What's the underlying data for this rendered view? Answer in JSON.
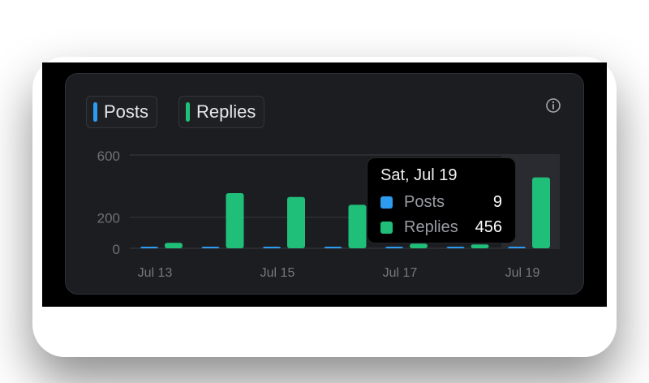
{
  "legend": {
    "posts_label": "Posts",
    "replies_label": "Replies",
    "posts_color": "#2d9cf0",
    "replies_color": "#1fbf7a"
  },
  "info_icon": "info-circle-icon",
  "tooltip": {
    "title": "Sat, Jul 19",
    "posts_label": "Posts",
    "posts_value": "9",
    "replies_label": "Replies",
    "replies_value": "456"
  },
  "chart_data": {
    "type": "bar",
    "categories": [
      "Jul 13",
      "Jul 14",
      "Jul 15",
      "Jul 16",
      "Jul 17",
      "Jul 18",
      "Jul 19"
    ],
    "x_tick_labels": [
      "Jul 13",
      "Jul 15",
      "Jul 17",
      "Jul 19"
    ],
    "y_tick_labels": [
      "0",
      "200",
      "600"
    ],
    "ylim": [
      0,
      600
    ],
    "series": [
      {
        "name": "Posts",
        "color": "#2d9cf0",
        "values": [
          5,
          8,
          6,
          3,
          6,
          8,
          9
        ]
      },
      {
        "name": "Replies",
        "color": "#1fbf7a",
        "values": [
          35,
          355,
          330,
          280,
          30,
          25,
          456
        ]
      }
    ],
    "highlighted_category": "Jul 19",
    "grid": true
  }
}
